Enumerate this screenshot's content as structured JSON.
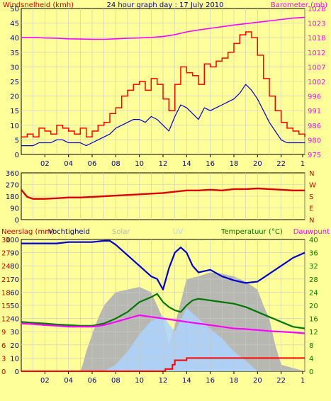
{
  "title": "24 hour graph day : 17 July 2010",
  "colors": {
    "background": "#ffff99",
    "plot_bg": "#ffff99",
    "grid": "#c8c8c8",
    "wind": "#ff0000",
    "gust": "#ff0000",
    "wind_avg": "#0000cc",
    "barometer": "#ff00ff",
    "direction": "#dd0000",
    "humidity": "#0000cc",
    "temperature": "#007700",
    "dewpoint": "#ff00ff",
    "rain": "#ff0000",
    "solar": "#b4b4b4",
    "uv": "#aad4ff"
  },
  "chart_data": [
    {
      "id": "wind-baro",
      "type": "line",
      "title": "24 hour graph day : 17 July 2010",
      "ylabel_left": "Windsnelheid (kmh)",
      "ylabel_right": "Barometer (mb)",
      "x_ticks": [
        "02",
        "04",
        "06",
        "08",
        "10",
        "12",
        "14",
        "16",
        "18",
        "20",
        "22",
        "1"
      ],
      "y_left_ticks": [
        "50",
        "45",
        "40",
        "35",
        "30",
        "25",
        "20",
        "15",
        "10",
        "5",
        "0"
      ],
      "y_right_ticks": [
        "1028",
        "1023",
        "1018",
        "1012",
        "1007",
        "1002",
        "996",
        "991",
        "986",
        "980",
        "975"
      ],
      "ylim_left": [
        0,
        50
      ],
      "ylim_right": [
        975,
        1028
      ],
      "grid": true,
      "series": [
        {
          "name": "gust",
          "axis": "left",
          "x": [
            0,
            0.5,
            1,
            1.5,
            2,
            2.5,
            3,
            3.5,
            4,
            4.5,
            5,
            5.5,
            6,
            6.5,
            7,
            7.5,
            8,
            8.5,
            9,
            9.5,
            10,
            10.5,
            11,
            11.5,
            12,
            12.5,
            13,
            13.5,
            14,
            14.5,
            15,
            15.5,
            16,
            16.5,
            17,
            17.5,
            18,
            18.5,
            19,
            19.5,
            20,
            20.5,
            21,
            21.5,
            22,
            22.5,
            23,
            23.5,
            24
          ],
          "values": [
            6,
            7,
            6,
            9,
            8,
            7,
            10,
            9,
            8,
            7,
            9,
            6,
            8,
            10,
            11,
            14,
            16,
            20,
            22,
            24,
            25,
            22,
            26,
            24,
            19,
            15,
            24,
            30,
            28,
            27,
            24,
            31,
            30,
            32,
            33,
            35,
            38,
            41,
            42,
            40,
            34,
            26,
            20,
            15,
            11,
            9,
            8,
            7,
            6
          ]
        },
        {
          "name": "wind_avg",
          "axis": "left",
          "x": [
            0,
            0.5,
            1,
            1.5,
            2,
            2.5,
            3,
            3.5,
            4,
            4.5,
            5,
            5.5,
            6,
            6.5,
            7,
            7.5,
            8,
            8.5,
            9,
            9.5,
            10,
            10.5,
            11,
            11.5,
            12,
            12.5,
            13,
            13.5,
            14,
            14.5,
            15,
            15.5,
            16,
            16.5,
            17,
            17.5,
            18,
            18.5,
            19,
            19.5,
            20,
            20.5,
            21,
            21.5,
            22,
            22.5,
            23,
            23.5,
            24
          ],
          "values": [
            3,
            3,
            3,
            4,
            4,
            4,
            5,
            5,
            4,
            4,
            4,
            3,
            4,
            5,
            6,
            7,
            9,
            10,
            11,
            12,
            12,
            11,
            13,
            12,
            10,
            8,
            13,
            17,
            16,
            14,
            12,
            16,
            15,
            16,
            17,
            18,
            19,
            21,
            24,
            22,
            19,
            15,
            11,
            8,
            5,
            4,
            4,
            4,
            4
          ]
        },
        {
          "name": "barometer",
          "axis": "right",
          "x": [
            0,
            1,
            2,
            3,
            4,
            5,
            6,
            7,
            8,
            9,
            10,
            11,
            12,
            13,
            14,
            15,
            16,
            17,
            18,
            19,
            20,
            21,
            22,
            23,
            24
          ],
          "values": [
            1017.5,
            1017.5,
            1017.3,
            1017.2,
            1017.0,
            1016.9,
            1016.8,
            1016.8,
            1017.0,
            1017.2,
            1017.3,
            1017.5,
            1017.8,
            1018.5,
            1019.5,
            1020.2,
            1020.8,
            1021.4,
            1022.0,
            1022.5,
            1023.0,
            1023.5,
            1024.0,
            1024.5,
            1024.8
          ]
        }
      ]
    },
    {
      "id": "wind-direction",
      "type": "line",
      "y_left_ticks": [
        "360",
        "270",
        "180",
        "90",
        "0"
      ],
      "y_right_ticks": [
        "N",
        "W",
        "S",
        "E",
        "N"
      ],
      "ylim": [
        0,
        360
      ],
      "grid": true,
      "series": [
        {
          "name": "direction",
          "x": [
            0,
            0.5,
            1,
            2,
            3,
            4,
            5,
            6,
            7,
            8,
            9,
            10,
            11,
            12,
            13,
            14,
            15,
            16,
            17,
            18,
            19,
            20,
            21,
            22,
            23,
            24
          ],
          "values": [
            230,
            175,
            160,
            160,
            165,
            170,
            170,
            175,
            180,
            185,
            190,
            195,
            200,
            205,
            215,
            225,
            225,
            230,
            225,
            235,
            235,
            240,
            235,
            230,
            225,
            225
          ]
        }
      ]
    },
    {
      "id": "hum-temp",
      "type": "line",
      "ylabel_left": "Neerslag (mm)",
      "ylabel_left_2": "Vochtigheid",
      "label_solar": "Solar",
      "label_uv": "UV",
      "ylabel_right": "Temperatuur (°C)",
      "ylabel_right_2": "Dauwpunt",
      "x_ticks": [
        "02",
        "04",
        "06",
        "08",
        "10",
        "12",
        "14",
        "16",
        "18",
        "20",
        "22",
        "1"
      ],
      "y_left_mm_ticks": [
        "30",
        "27",
        "24",
        "21",
        "18",
        "15",
        "12",
        "9",
        "6",
        "3",
        "0"
      ],
      "y_left_pct_ticks": [
        "100",
        "90",
        "80",
        "70",
        "60",
        "50",
        "40",
        "30",
        "20",
        "10",
        "0"
      ],
      "y_right_ticks": [
        "40",
        "36",
        "32",
        "28",
        "24",
        "20",
        "16",
        "12",
        "8",
        "4",
        "0"
      ],
      "ylim_left": [
        0,
        100
      ],
      "ylim_right": [
        0,
        40
      ],
      "grid": true,
      "series": [
        {
          "name": "humidity",
          "axis": "left",
          "x": [
            0,
            1,
            2,
            3,
            4,
            5,
            6,
            7,
            7.5,
            8,
            9,
            10,
            11,
            11.5,
            12,
            12.5,
            13,
            13.5,
            14,
            14.5,
            15,
            16,
            17,
            18,
            19,
            20,
            21,
            22,
            23,
            24
          ],
          "values": [
            97,
            97,
            97,
            97,
            98,
            98,
            98,
            99,
            99,
            96,
            88,
            80,
            72,
            70,
            62,
            78,
            90,
            94,
            90,
            80,
            75,
            77,
            72,
            69,
            67,
            68,
            74,
            80,
            86,
            90
          ]
        },
        {
          "name": "temperature",
          "axis": "right",
          "x": [
            0,
            1,
            2,
            3,
            4,
            5,
            6,
            7,
            8,
            9,
            10,
            11,
            11.5,
            12,
            12.5,
            13,
            13.5,
            14,
            14.5,
            15,
            16,
            17,
            18,
            19,
            20,
            21,
            22,
            23,
            24
          ],
          "values": [
            15,
            14.7,
            14.5,
            14.2,
            14,
            13.8,
            13.8,
            14.5,
            16,
            18,
            21,
            22.5,
            23.5,
            21,
            19.5,
            18.5,
            18,
            20,
            21.5,
            22,
            21.5,
            21,
            20.5,
            19.5,
            18,
            16.5,
            15,
            13.5,
            13
          ]
        },
        {
          "name": "dewpoint",
          "axis": "right",
          "x": [
            0,
            1,
            2,
            3,
            4,
            5,
            6,
            7,
            8,
            9,
            10,
            11,
            12,
            13,
            14,
            15,
            16,
            17,
            18,
            19,
            20,
            21,
            22,
            23,
            24
          ],
          "values": [
            14.5,
            14.3,
            14,
            13.8,
            13.5,
            13.5,
            13.5,
            14,
            15,
            16,
            17,
            16.5,
            16,
            15.5,
            15,
            14.5,
            14,
            13.5,
            13,
            12.8,
            12.5,
            12.2,
            12,
            11.8,
            11.5
          ]
        },
        {
          "name": "rain",
          "axis": "left_mm",
          "x": [
            0,
            12,
            12.2,
            12.8,
            13,
            14,
            24
          ],
          "values": [
            0,
            0,
            0.5,
            1.5,
            2.5,
            3,
            3
          ]
        },
        {
          "name": "solar",
          "axis": "left",
          "x": [
            0,
            5,
            5.2,
            5.5,
            6,
            6.5,
            7,
            7.5,
            8,
            9,
            10,
            11,
            12,
            12.5,
            13,
            14,
            15,
            16,
            17,
            18,
            19,
            20,
            20.5,
            21,
            21.5,
            22,
            24
          ],
          "values": [
            0,
            0,
            5,
            15,
            28,
            40,
            50,
            55,
            60,
            62,
            64,
            60,
            40,
            20,
            35,
            70,
            72,
            75,
            74,
            72,
            68,
            62,
            50,
            40,
            20,
            5,
            0
          ]
        },
        {
          "name": "uv",
          "axis": "left",
          "x": [
            0,
            7,
            8,
            9,
            10,
            11,
            12,
            13,
            14,
            15,
            16,
            17,
            18,
            19,
            20,
            24
          ],
          "values": [
            0,
            0,
            5,
            15,
            28,
            38,
            42,
            30,
            48,
            40,
            32,
            25,
            15,
            8,
            0,
            0
          ]
        }
      ]
    }
  ]
}
